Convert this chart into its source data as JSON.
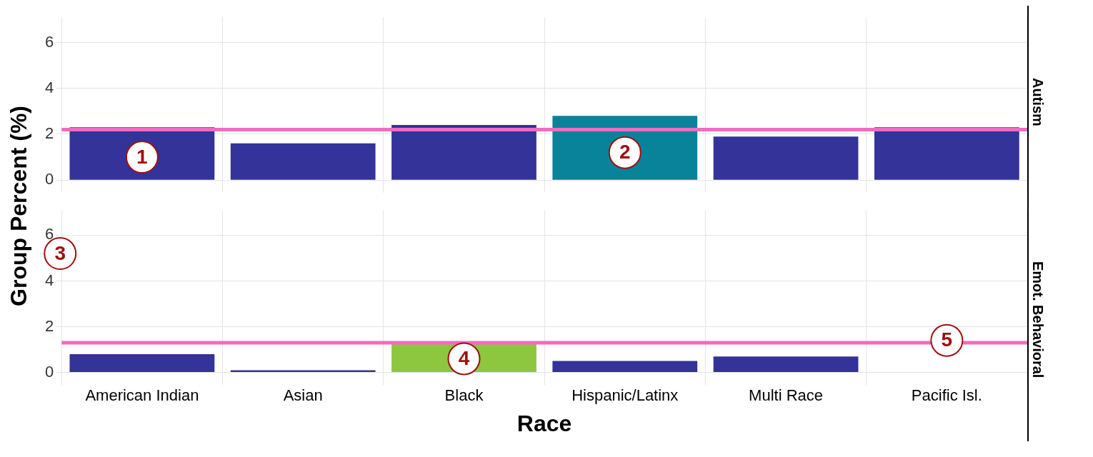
{
  "chart_data": [
    {
      "type": "bar",
      "title": "Autism",
      "ylabel": "Group Percent (%)",
      "categories": [
        "American Indian",
        "Asian",
        "Black",
        "Hispanic/Latinx",
        "Multi Race",
        "Pacific Isl."
      ],
      "values": [
        2.3,
        1.6,
        2.4,
        2.8,
        1.9,
        2.3
      ],
      "colors": [
        "#333399",
        "#333399",
        "#333399",
        "#08839a",
        "#333399",
        "#333399"
      ],
      "ylim": [
        -0.3,
        7.1
      ],
      "yticks": [
        0,
        2,
        4,
        6
      ],
      "grid": true,
      "legend": false,
      "tick_labels": "y",
      "ref_lines": [
        {
          "axis": "y",
          "value": 2.2,
          "color": "#f06cc0"
        }
      ],
      "annotations": [
        {
          "text": "1",
          "x": "American Indian",
          "y": 1
        },
        {
          "text": "2",
          "x": "Hispanic/Latinx",
          "y": 1.2
        }
      ]
    },
    {
      "type": "bar",
      "title": "Emot. Behavioral",
      "xlabel": "Race",
      "categories": [
        "American Indian",
        "Asian",
        "Black",
        "Hispanic/Latinx",
        "Multi Race",
        "Pacific Isl."
      ],
      "values": [
        0.8,
        0.1,
        1.3,
        0.5,
        0.7,
        null
      ],
      "colors": [
        "#333399",
        "#333399",
        "#8dc63f",
        "#333399",
        "#333399",
        "#333399"
      ],
      "ylim": [
        -0.3,
        7.1
      ],
      "yticks": [
        0,
        2,
        4,
        6
      ],
      "grid": true,
      "legend": false,
      "ref_lines": [
        {
          "axis": "y",
          "value": 1.3,
          "color": "#f06cc0"
        }
      ],
      "annotations": [
        {
          "text": "3",
          "y": 5.2
        },
        {
          "text": "4",
          "x": "Black",
          "y": 0.6
        },
        {
          "text": "5",
          "x": "Pacific Isl.",
          "y": 1.4
        }
      ]
    }
  ]
}
